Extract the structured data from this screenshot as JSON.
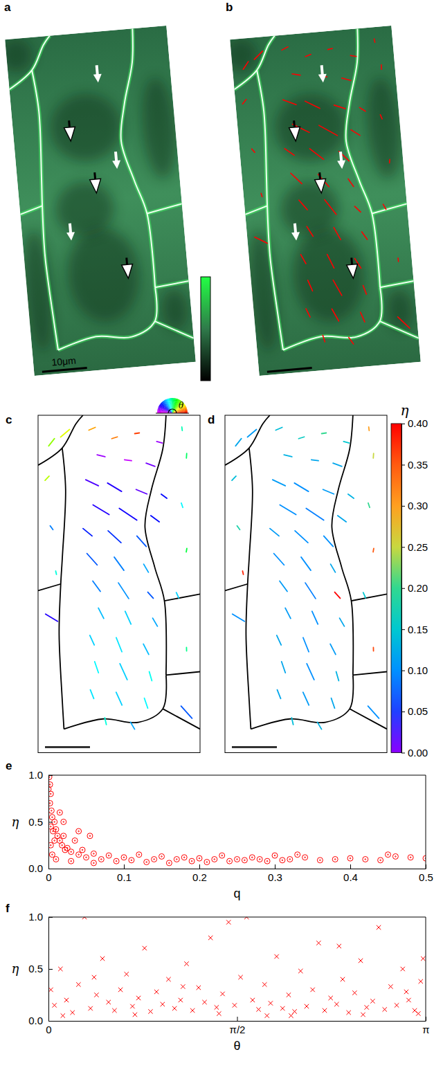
{
  "chart_data": [
    {
      "type": "image",
      "title": "a",
      "scale_bar": {
        "value": 10,
        "label": "10μm"
      }
    },
    {
      "type": "image",
      "title": "b",
      "color": "#ff0000"
    },
    {
      "type": "quiver",
      "title": "c",
      "xlim": [
        0,
        36
      ],
      "ylim": [
        0,
        75
      ],
      "x": [
        3,
        6,
        12,
        17,
        22,
        27,
        32,
        14,
        20,
        25,
        33,
        2,
        12,
        17,
        23,
        28,
        14,
        20,
        26,
        11,
        17,
        23,
        32,
        33,
        31,
        3,
        4,
        12,
        18,
        24,
        13,
        19,
        25,
        14,
        20,
        26,
        12,
        18,
        24,
        13,
        19,
        25,
        12,
        18,
        24,
        15,
        21,
        3,
        33,
        33
      ],
      "y": [
        6,
        4,
        3,
        5,
        4,
        6,
        3,
        9,
        10,
        11,
        9,
        14,
        15,
        16,
        17,
        18,
        21,
        22,
        23,
        26,
        27,
        28,
        20,
        30,
        40,
        25,
        35,
        32,
        33,
        34,
        38,
        39,
        40,
        44,
        45,
        46,
        50,
        51,
        52,
        56,
        57,
        58,
        62,
        63,
        64,
        68,
        69,
        45,
        66,
        52
      ],
      "theta": [
        0.9,
        0.7,
        0.4,
        0.3,
        0.15,
        2.9,
        1.7,
        2.9,
        3.0,
        2.8,
        1.5,
        0.8,
        2.7,
        2.6,
        2.75,
        2.5,
        2.6,
        2.55,
        2.5,
        2.45,
        2.4,
        2.3,
        1.9,
        1.4,
        2.0,
        2.2,
        1.8,
        2.3,
        2.2,
        2.1,
        2.2,
        2.15,
        2.3,
        2.05,
        2.0,
        2.1,
        2.0,
        1.95,
        2.05,
        1.9,
        2.0,
        1.85,
        1.95,
        2.0,
        1.9,
        1.8,
        2.1,
        2.6,
        2.3,
        1.6
      ],
      "q": [
        0.08,
        0.1,
        0.06,
        0.05,
        0.04,
        0.05,
        0.03,
        0.07,
        0.06,
        0.08,
        0.04,
        0.05,
        0.12,
        0.14,
        0.1,
        0.06,
        0.16,
        0.18,
        0.09,
        0.1,
        0.15,
        0.12,
        0.04,
        0.03,
        0.05,
        0.04,
        0.03,
        0.13,
        0.14,
        0.08,
        0.11,
        0.16,
        0.07,
        0.1,
        0.12,
        0.08,
        0.09,
        0.13,
        0.1,
        0.1,
        0.15,
        0.08,
        0.08,
        0.12,
        0.09,
        0.06,
        0.07,
        0.12,
        0.14,
        0.03
      ],
      "eta": [
        0.12,
        0.11,
        0.14,
        0.16,
        0.2,
        0.15,
        0.3,
        0.13,
        0.12,
        0.12,
        0.25,
        0.14,
        0.11,
        0.1,
        0.11,
        0.13,
        0.1,
        0.09,
        0.12,
        0.11,
        0.1,
        0.1,
        0.2,
        0.35,
        0.15,
        0.18,
        0.38,
        0.1,
        0.1,
        0.12,
        0.11,
        0.09,
        0.4,
        0.11,
        0.1,
        0.12,
        0.12,
        0.1,
        0.11,
        0.12,
        0.1,
        0.13,
        0.12,
        0.11,
        0.12,
        0.14,
        0.13,
        0.1,
        0.1,
        0.36
      ],
      "colorbar": {
        "label": "θ",
        "range": [
          0,
          3.14159
        ]
      }
    },
    {
      "type": "quiver",
      "title": "d",
      "colorbar": {
        "label": "η",
        "range": [
          0,
          0.4
        ],
        "ticks": [
          {
            "value": 0,
            "label": "0.00"
          },
          {
            "value": 0.05,
            "label": "0.05"
          },
          {
            "value": 0.1,
            "label": "0.10"
          },
          {
            "value": 0.15,
            "label": "0.15"
          },
          {
            "value": 0.2,
            "label": "0.20"
          },
          {
            "value": 0.25,
            "label": "0.25"
          },
          {
            "value": 0.3,
            "label": "0.30"
          },
          {
            "value": 0.35,
            "label": "0.35"
          },
          {
            "value": 0.4,
            "label": "0.40"
          }
        ]
      }
    },
    {
      "type": "scatter",
      "title": "e",
      "xlabel": "q",
      "ylabel": "η",
      "color": "#ff0000",
      "marker": "circle",
      "xlim": [
        0,
        0.5
      ],
      "ylim": [
        0,
        1
      ],
      "xticks": [
        0,
        0.1,
        0.2,
        0.3,
        0.4,
        0.5
      ],
      "yticks": [
        {
          "value": 0,
          "label": "0.0"
        },
        {
          "value": 0.5,
          "label": "0.5"
        },
        {
          "value": 1,
          "label": "1.0"
        }
      ],
      "x": [
        0.001,
        0.002,
        0.003,
        0.002,
        0.004,
        0.005,
        0.003,
        0.006,
        0.008,
        0.01,
        0.012,
        0.008,
        0.015,
        0.018,
        0.02,
        0.022,
        0.005,
        0.01,
        0.003,
        0.025,
        0.03,
        0.035,
        0.04,
        0.045,
        0.05,
        0.06,
        0.055,
        0.07,
        0.08,
        0.09,
        0.1,
        0.11,
        0.12,
        0.13,
        0.14,
        0.15,
        0.16,
        0.17,
        0.18,
        0.19,
        0.2,
        0.21,
        0.22,
        0.23,
        0.24,
        0.25,
        0.26,
        0.27,
        0.28,
        0.29,
        0.3,
        0.31,
        0.32,
        0.33,
        0.34,
        0.36,
        0.38,
        0.4,
        0.42,
        0.44,
        0.45,
        0.46,
        0.48,
        0.5,
        0.03,
        0.06,
        0.02,
        0.04,
        0.015,
        0
      ],
      "values": [
        0.98,
        0.9,
        0.8,
        0.7,
        0.62,
        0.55,
        0.45,
        0.4,
        0.5,
        0.42,
        0.35,
        0.3,
        0.3,
        0.25,
        0.35,
        0.2,
        0.15,
        0.1,
        0.25,
        0.22,
        0.18,
        0.3,
        0.15,
        0.2,
        0.12,
        0.16,
        0.35,
        0.1,
        0.14,
        0.08,
        0.12,
        0.09,
        0.15,
        0.07,
        0.1,
        0.13,
        0.06,
        0.1,
        0.12,
        0.08,
        0.11,
        0.07,
        0.1,
        0.14,
        0.08,
        0.1,
        0.09,
        0.12,
        0.1,
        0.08,
        0.14,
        0.09,
        0.1,
        0.15,
        0.12,
        0.09,
        0.1,
        0.11,
        0.1,
        0.09,
        0.15,
        0.13,
        0.12,
        0.11,
        0.08,
        0.06,
        0.5,
        0.4,
        0.6,
        0.85
      ]
    },
    {
      "type": "scatter",
      "title": "f",
      "xlabel": "θ",
      "ylabel": "η",
      "color": "#ff0000",
      "marker": "x",
      "xlim": [
        0,
        3.14159
      ],
      "ylim": [
        0,
        1
      ],
      "xticks": [
        0,
        {
          "value": 1.5708,
          "label": "π/2"
        },
        {
          "value": 3.14159,
          "label": "π"
        }
      ],
      "yticks": [
        {
          "value": 0,
          "label": "0.0"
        },
        {
          "value": 0.5,
          "label": "0.5"
        },
        {
          "value": 1,
          "label": "1.0"
        }
      ],
      "x": [
        0.02,
        0.05,
        0.1,
        0.15,
        0.2,
        0.25,
        0.3,
        0.35,
        0.4,
        0.45,
        0.5,
        0.55,
        0.6,
        0.65,
        0.7,
        0.75,
        0.8,
        0.85,
        0.9,
        0.95,
        1.0,
        1.05,
        1.1,
        1.15,
        1.2,
        1.25,
        1.3,
        1.35,
        1.4,
        1.45,
        1.5,
        1.55,
        1.6,
        1.65,
        1.7,
        1.75,
        1.8,
        1.85,
        1.9,
        1.95,
        2.0,
        2.05,
        2.1,
        2.15,
        2.2,
        2.25,
        2.3,
        2.35,
        2.4,
        2.45,
        2.5,
        2.55,
        2.6,
        2.65,
        2.7,
        2.75,
        2.8,
        2.85,
        2.9,
        2.95,
        3.0,
        3.05,
        3.1,
        3.12,
        0.12,
        0.72,
        1.42,
        2.02,
        2.62,
        3.08,
        0.38,
        1.12,
        1.82,
        2.42,
        2.98
      ],
      "values": [
        0.3,
        0.15,
        0.5,
        0.2,
        0.08,
        0.35,
        1.0,
        0.12,
        0.25,
        0.6,
        0.18,
        0.1,
        0.3,
        0.45,
        0.14,
        0.22,
        0.7,
        0.09,
        0.28,
        0.16,
        0.4,
        0.12,
        0.2,
        0.55,
        0.1,
        0.32,
        0.18,
        0.8,
        0.13,
        0.26,
        0.95,
        0.15,
        0.42,
        1.0,
        0.2,
        0.11,
        0.35,
        0.17,
        0.62,
        0.12,
        0.25,
        0.09,
        0.48,
        0.14,
        0.3,
        0.75,
        0.1,
        0.22,
        0.16,
        0.4,
        0.08,
        0.27,
        0.58,
        0.13,
        0.19,
        0.9,
        0.11,
        0.33,
        0.15,
        0.5,
        0.2,
        0.1,
        0.38,
        0.6,
        0.05,
        0.06,
        0.07,
        0.05,
        0.06,
        0.07,
        0.42,
        0.33,
        0.05,
        0.72,
        0.28
      ]
    }
  ]
}
